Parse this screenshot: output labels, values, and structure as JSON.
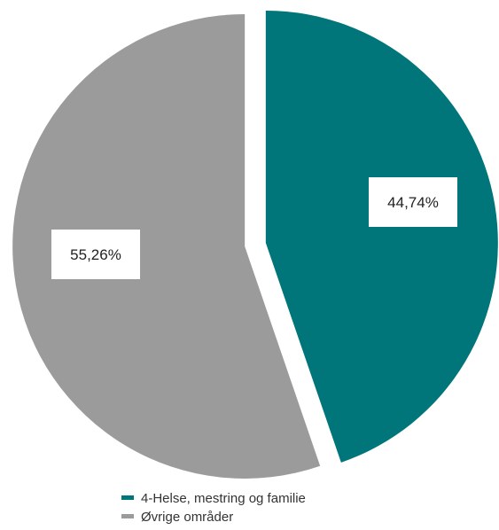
{
  "chart_data": {
    "type": "pie",
    "categories": [
      "4-Helse, mestring og familie",
      "Øvrige områder"
    ],
    "values": [
      44.74,
      55.26
    ],
    "data_labels": [
      "44,74%",
      "55,26%"
    ],
    "colors": [
      "#00767a",
      "#9b9b9b"
    ],
    "exploded": true,
    "start_angle": "12 o'clock, clockwise",
    "legend_position": "bottom",
    "title": "",
    "legend": [
      {
        "label": "4-Helse, mestring og familie",
        "color": "#00767a"
      },
      {
        "label": "Øvrige områder",
        "color": "#9b9b9b"
      }
    ]
  }
}
